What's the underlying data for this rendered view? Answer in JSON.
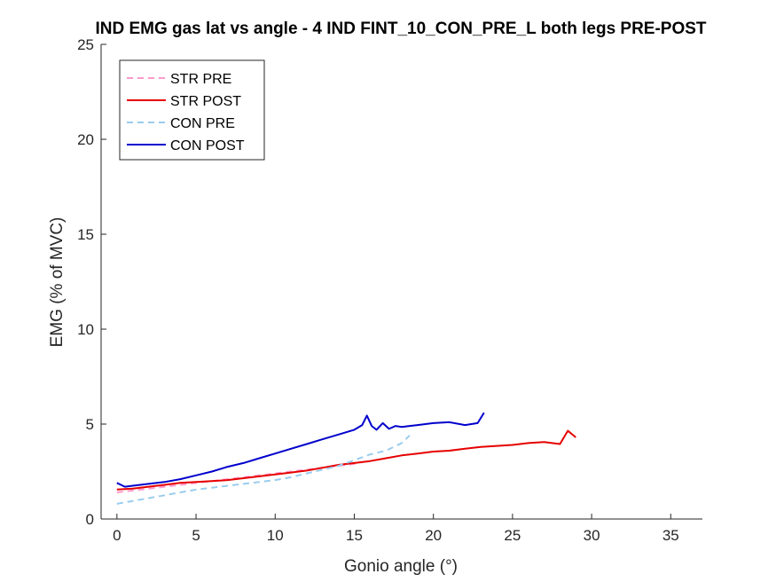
{
  "chart_data": {
    "type": "line",
    "title": "IND EMG gas lat vs angle - 4 IND FINT_10_CON_PRE_L both legs PRE-POST",
    "xlabel": "Gonio angle (°)",
    "ylabel": "EMG (% of MVC)",
    "xlim": [
      -1,
      37
    ],
    "ylim": [
      0,
      25
    ],
    "xticks": [
      0,
      5,
      10,
      15,
      20,
      25,
      30,
      35
    ],
    "yticks": [
      0,
      5,
      10,
      15,
      20,
      25
    ],
    "grid": false,
    "legend_position": "top-left",
    "series": [
      {
        "name": "STR PRE",
        "color": "#ff99cc",
        "style": "dashed",
        "x": [
          0,
          1,
          2,
          3,
          4,
          5,
          6,
          7,
          8,
          9,
          10,
          11,
          12,
          13,
          14,
          15,
          15.5
        ],
        "y": [
          1.4,
          1.5,
          1.6,
          1.7,
          1.8,
          1.9,
          2.0,
          2.1,
          2.2,
          2.3,
          2.4,
          2.5,
          2.6,
          2.7,
          2.8,
          2.9,
          3.0
        ]
      },
      {
        "name": "STR POST",
        "color": "#e60000",
        "style": "solid",
        "x": [
          0,
          1,
          2,
          3,
          4,
          5,
          6,
          7,
          8,
          9,
          10,
          11,
          12,
          13,
          14,
          15,
          16,
          17,
          18,
          19,
          20,
          21,
          22,
          23,
          24,
          25,
          26,
          27,
          28,
          28.5,
          29
        ],
        "y": [
          1.55,
          1.6,
          1.7,
          1.8,
          1.9,
          1.95,
          2.0,
          2.05,
          2.15,
          2.25,
          2.35,
          2.45,
          2.55,
          2.7,
          2.85,
          2.95,
          3.05,
          3.2,
          3.35,
          3.45,
          3.55,
          3.6,
          3.7,
          3.8,
          3.85,
          3.9,
          4.0,
          4.05,
          3.95,
          4.65,
          4.3
        ]
      },
      {
        "name": "CON PRE",
        "color": "#99ccee",
        "style": "dashed",
        "x": [
          0,
          1,
          2,
          3,
          4,
          5,
          6,
          7,
          8,
          9,
          10,
          11,
          12,
          13,
          14,
          15,
          16,
          17,
          18,
          18.5
        ],
        "y": [
          0.8,
          0.95,
          1.1,
          1.25,
          1.4,
          1.55,
          1.65,
          1.75,
          1.85,
          1.95,
          2.05,
          2.2,
          2.4,
          2.6,
          2.8,
          3.1,
          3.4,
          3.6,
          4.0,
          4.4
        ]
      },
      {
        "name": "CON POST",
        "color": "#0000cc",
        "style": "solid",
        "x": [
          0,
          0.5,
          1,
          2,
          3,
          4,
          5,
          6,
          7,
          8,
          9,
          10,
          11,
          12,
          13,
          14,
          15,
          15.5,
          15.8,
          16.1,
          16.4,
          16.8,
          17.2,
          17.6,
          18,
          18.5,
          19,
          20,
          21,
          22,
          22.8,
          23.2
        ],
        "y": [
          1.9,
          1.7,
          1.75,
          1.85,
          1.95,
          2.1,
          2.3,
          2.5,
          2.75,
          2.95,
          3.2,
          3.45,
          3.7,
          3.95,
          4.2,
          4.45,
          4.7,
          4.95,
          5.45,
          4.9,
          4.7,
          5.05,
          4.75,
          4.9,
          4.85,
          4.9,
          4.95,
          5.05,
          5.1,
          4.95,
          5.05,
          5.6
        ]
      }
    ]
  }
}
